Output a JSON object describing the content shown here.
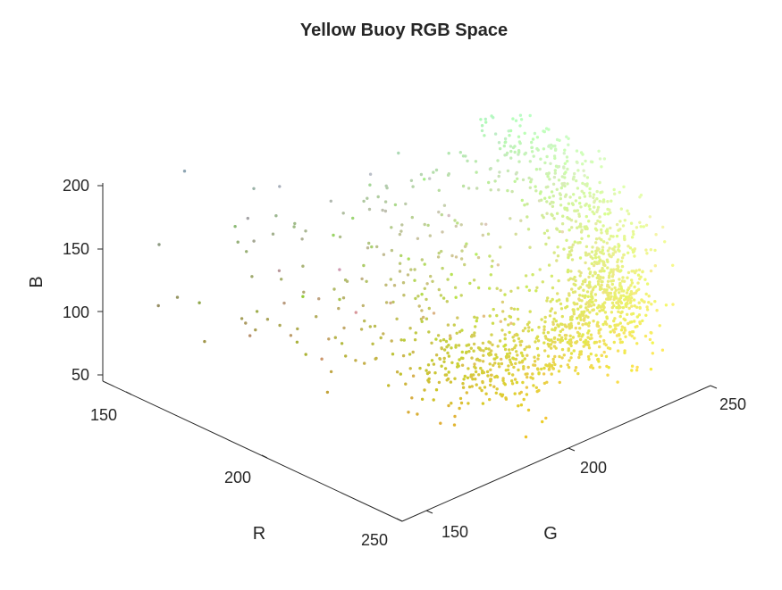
{
  "chart_data": {
    "type": "scatter",
    "title": "Yellow Buoy RGB Space",
    "xlabel": "R",
    "ylabel": "G",
    "zlabel": "B",
    "x_ticks": [
      "150",
      "200",
      "250"
    ],
    "y_ticks": [
      "150",
      "200",
      "250"
    ],
    "z_ticks": [
      "50",
      "100",
      "150",
      "200"
    ],
    "xlim": [
      140,
      250
    ],
    "ylim": [
      130,
      260
    ],
    "zlim": [
      40,
      200
    ],
    "grid": false,
    "marker_color": "each point colored by its own RGB value",
    "clusters": [
      {
        "R": 215,
        "G": 205,
        "B": 55,
        "n": 80,
        "spread": [
          10,
          8,
          6
        ]
      },
      {
        "R": 220,
        "G": 210,
        "B": 75,
        "n": 170,
        "spread": [
          10,
          8,
          8
        ]
      },
      {
        "R": 230,
        "G": 225,
        "B": 90,
        "n": 220,
        "spread": [
          9,
          7,
          10
        ]
      },
      {
        "R": 235,
        "G": 235,
        "B": 110,
        "n": 260,
        "spread": [
          8,
          6,
          12
        ]
      },
      {
        "R": 230,
        "G": 240,
        "B": 135,
        "n": 210,
        "spread": [
          8,
          6,
          12
        ]
      },
      {
        "R": 215,
        "G": 245,
        "B": 160,
        "n": 170,
        "spread": [
          10,
          6,
          12
        ]
      },
      {
        "R": 200,
        "G": 245,
        "B": 185,
        "n": 140,
        "spread": [
          12,
          8,
          8
        ]
      },
      {
        "R": 195,
        "G": 215,
        "B": 165,
        "n": 60,
        "spread": [
          15,
          12,
          15
        ]
      },
      {
        "R": 200,
        "G": 205,
        "B": 100,
        "n": 110,
        "spread": [
          18,
          18,
          25
        ]
      },
      {
        "R": 185,
        "G": 185,
        "B": 120,
        "n": 70,
        "spread": [
          20,
          18,
          30
        ]
      },
      {
        "R": 210,
        "G": 200,
        "B": 60,
        "n": 60,
        "spread": [
          12,
          12,
          8
        ]
      }
    ],
    "outliers": [
      {
        "R": 150,
        "G": 142,
        "B": 100
      },
      {
        "R": 150,
        "G": 150,
        "B": 100
      },
      {
        "R": 160,
        "G": 150,
        "B": 75
      },
      {
        "R": 165,
        "G": 160,
        "B": 90
      },
      {
        "R": 170,
        "G": 160,
        "B": 86
      },
      {
        "R": 172,
        "G": 168,
        "B": 85
      },
      {
        "R": 175,
        "G": 172,
        "B": 82
      },
      {
        "R": 160,
        "G": 170,
        "B": 110
      },
      {
        "R": 170,
        "G": 180,
        "B": 120
      },
      {
        "R": 185,
        "G": 180,
        "B": 110
      },
      {
        "R": 190,
        "G": 190,
        "B": 75
      },
      {
        "R": 195,
        "G": 182,
        "B": 70
      },
      {
        "R": 175,
        "G": 190,
        "B": 140
      },
      {
        "R": 175,
        "G": 200,
        "B": 160
      },
      {
        "R": 225,
        "G": 175,
        "B": 55
      }
    ]
  }
}
